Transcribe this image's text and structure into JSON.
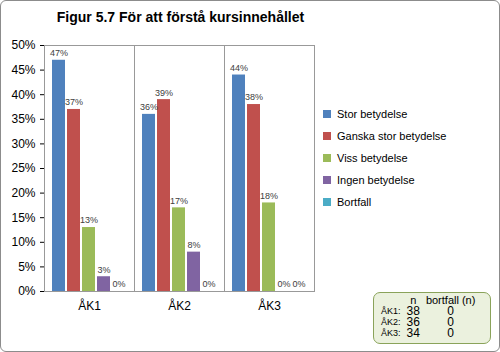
{
  "chart_data": {
    "type": "bar",
    "title": "Figur 5.7 För att förstå kursinnehållet",
    "categories": [
      "ÅK1",
      "ÅK2",
      "ÅK3"
    ],
    "series": [
      {
        "name": "Stor betydelse",
        "color": "#4f81bd",
        "values": [
          47,
          36,
          44
        ],
        "value_labels": [
          "47%",
          "36%",
          "44%"
        ]
      },
      {
        "name": "Ganska stor betydelse",
        "color": "#c0504d",
        "values": [
          37,
          39,
          38
        ],
        "value_labels": [
          "37%",
          "39%",
          "38%"
        ]
      },
      {
        "name": "Viss betydelse",
        "color": "#9bbb59",
        "values": [
          13,
          17,
          18
        ],
        "value_labels": [
          "13%",
          "17%",
          "18%"
        ]
      },
      {
        "name": "Ingen betydelse",
        "color": "#8064a2",
        "values": [
          3,
          8,
          0
        ],
        "value_labels": [
          "3%",
          "8%",
          "0%"
        ]
      },
      {
        "name": "Bortfall",
        "color": "#4bacc6",
        "values": [
          0,
          0,
          0
        ],
        "value_labels": [
          "0%",
          "0%",
          "0%"
        ]
      }
    ],
    "ylim": [
      0,
      50
    ],
    "yticks": [
      {
        "value": 0,
        "label": "0%"
      },
      {
        "value": 5,
        "label": "5%"
      },
      {
        "value": 10,
        "label": "10%"
      },
      {
        "value": 15,
        "label": "15%"
      },
      {
        "value": 20,
        "label": "20%"
      },
      {
        "value": 25,
        "label": "25%"
      },
      {
        "value": 30,
        "label": "30%"
      },
      {
        "value": 35,
        "label": "35%"
      },
      {
        "value": 40,
        "label": "40%"
      },
      {
        "value": 45,
        "label": "45%"
      },
      {
        "value": 50,
        "label": "50%"
      }
    ],
    "grid": false,
    "data_labels": true,
    "legend": "right",
    "table": {
      "columns": [
        "n",
        "bortfall (n)"
      ],
      "rows": [
        {
          "label": "ÅK1:",
          "values": [
            38,
            0
          ]
        },
        {
          "label": "ÅK2:",
          "values": [
            36,
            0
          ]
        },
        {
          "label": "ÅK3:",
          "values": [
            34,
            0
          ]
        }
      ]
    }
  }
}
